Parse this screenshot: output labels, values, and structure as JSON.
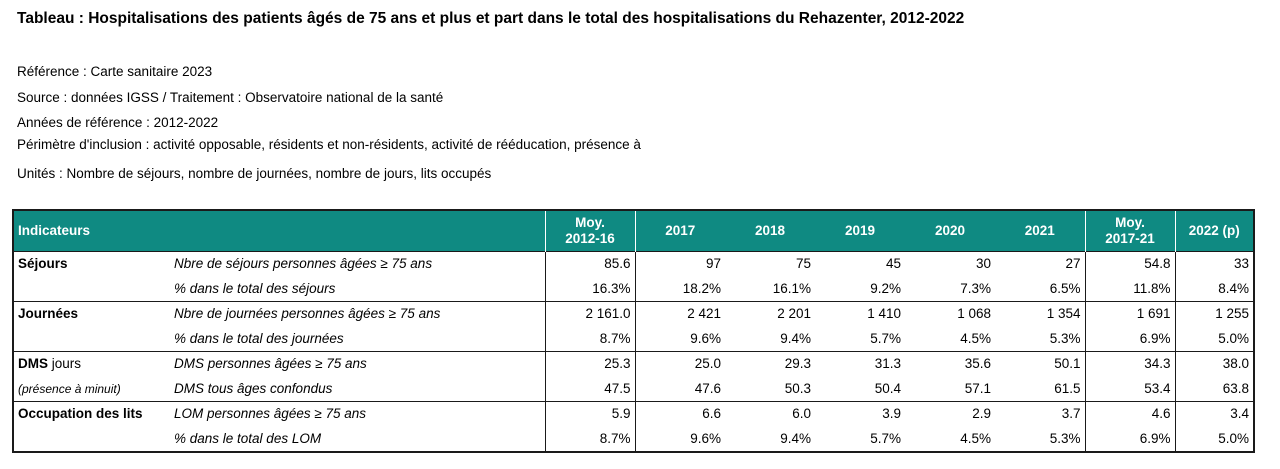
{
  "title": "Tableau : Hospitalisations des patients âgés de 75 ans et plus et part dans le total des hospitalisations du Rehazenter, 2012-2022",
  "meta": {
    "reference": "Référence : Carte sanitaire 2023",
    "source": "Source : données IGSS / Traitement : Observatoire national de la santé",
    "annees": "Années de référence : 2012-2022",
    "perimetre": "Périmètre d'inclusion : activité opposable, résidents et non-résidents, activité de rééducation, présence à",
    "unites": "Unités : Nombre de séjours, nombre de journées, nombre de jours, lits occupés"
  },
  "header": {
    "indicateurs": "Indicateurs",
    "cols": [
      {
        "l1": "Moy.",
        "l2": "2012-16"
      },
      {
        "l1": "2017",
        "l2": ""
      },
      {
        "l1": "2018",
        "l2": ""
      },
      {
        "l1": "2019",
        "l2": ""
      },
      {
        "l1": "2020",
        "l2": ""
      },
      {
        "l1": "2021",
        "l2": ""
      },
      {
        "l1": "Moy.",
        "l2": "2017-21"
      },
      {
        "l1": "2022 (p)",
        "l2": ""
      }
    ]
  },
  "rows": [
    {
      "group": "Séjours",
      "group_suffix": "",
      "desc": "Nbre de séjours personnes âgées  ≥ 75 ans",
      "values": [
        "85.6",
        "97",
        "75",
        "45",
        "30",
        "27",
        "54.8",
        "33"
      ]
    },
    {
      "group": "",
      "group_suffix": "",
      "desc": "% dans le total des séjours",
      "values": [
        "16.3%",
        "18.2%",
        "16.1%",
        "9.2%",
        "7.3%",
        "6.5%",
        "11.8%",
        "8.4%"
      ]
    },
    {
      "group": "Journées",
      "group_suffix": "",
      "desc": "Nbre de journées personnes âgées  ≥ 75 ans",
      "values": [
        "2 161.0",
        "2 421",
        "2 201",
        "1 410",
        "1 068",
        "1 354",
        "1 691",
        "1 255"
      ]
    },
    {
      "group": "",
      "group_suffix": "",
      "desc": "% dans le total des journées",
      "values": [
        "8.7%",
        "9.6%",
        "9.4%",
        "5.7%",
        "4.5%",
        "5.3%",
        "6.9%",
        "5.0%"
      ]
    },
    {
      "group": "DMS",
      "group_suffix": " jours",
      "desc": "DMS personnes âgées ≥ 75 ans",
      "values": [
        "25.3",
        "25.0",
        "29.3",
        "31.3",
        "35.6",
        "50.1",
        "34.3",
        "38.0"
      ]
    },
    {
      "group": "",
      "group_suffix": "",
      "group_italic": "(présence à minuit)",
      "desc": "DMS tous âges confondus",
      "values": [
        "47.5",
        "47.6",
        "50.3",
        "50.4",
        "57.1",
        "61.5",
        "53.4",
        "63.8"
      ]
    },
    {
      "group": "Occupation des lits",
      "group_suffix": "",
      "desc": "LOM personnes âgées ≥ 75 ans",
      "values": [
        "5.9",
        "6.6",
        "6.0",
        "3.9",
        "2.9",
        "3.7",
        "4.6",
        "3.4"
      ]
    },
    {
      "group": "",
      "group_suffix": "",
      "desc": "% dans le total des LOM",
      "values": [
        "8.7%",
        "9.6%",
        "9.4%",
        "5.7%",
        "4.5%",
        "5.3%",
        "6.9%",
        "5.0%"
      ]
    }
  ]
}
